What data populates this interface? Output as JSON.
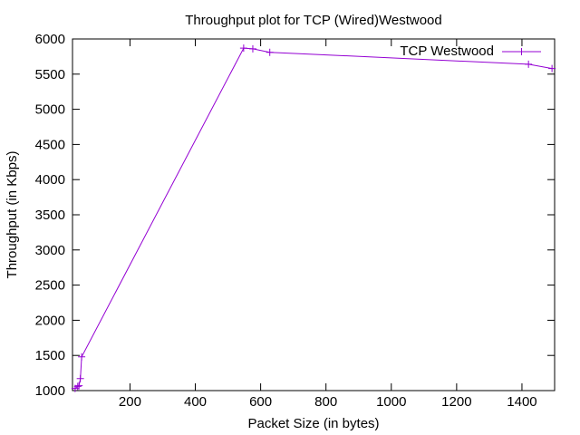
{
  "chart_data": {
    "type": "line",
    "title": "Throughput plot for TCP (Wired)Westwood",
    "xlabel": "Packet Size (in bytes)",
    "ylabel": "Throughput (in Kbps)",
    "xlim": [
      24,
      1500
    ],
    "ylim": [
      1000,
      6000
    ],
    "x_ticks": [
      200,
      400,
      600,
      800,
      1000,
      1200,
      1400
    ],
    "y_ticks": [
      1000,
      1500,
      2000,
      2500,
      3000,
      3500,
      4000,
      4500,
      5000,
      5500,
      6000
    ],
    "grid": false,
    "legend_position": "top-right",
    "series": [
      {
        "name": "TCP Westwood",
        "color": "#9400d3",
        "marker": "plus",
        "x": [
          32,
          40,
          44,
          48,
          52,
          548,
          576,
          628,
          1420,
          1492
        ],
        "y": [
          1030,
          1060,
          1070,
          1170,
          1480,
          5870,
          5860,
          5810,
          5640,
          5580
        ]
      }
    ]
  }
}
